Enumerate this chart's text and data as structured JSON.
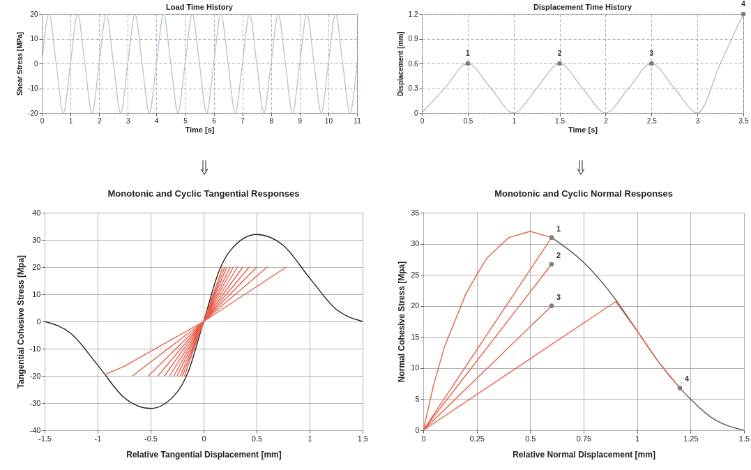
{
  "chart_data": [
    {
      "type": "line",
      "title": "Load Time History",
      "xlabel": "Time [s]",
      "ylabel": "Shear Stress [MPa]",
      "xlim": [
        0,
        11
      ],
      "ylim": [
        -20,
        20
      ],
      "xticks": [
        0,
        1,
        2,
        3,
        4,
        5,
        6,
        7,
        8,
        9,
        10,
        11
      ],
      "yticks": [
        -20,
        -10,
        0,
        10,
        20
      ],
      "grid": true,
      "series": [
        {
          "type": "line",
          "color": "#b4c3d6",
          "x": [
            0,
            0.25,
            0.5,
            0.75,
            1,
            1.25,
            1.5,
            1.75,
            2,
            2.25,
            2.5,
            2.75,
            3,
            3.25,
            3.5,
            3.75,
            4,
            4.25,
            4.5,
            4.75,
            5,
            5.25,
            5.5,
            5.75,
            6,
            6.25,
            6.5,
            6.75,
            7,
            7.25,
            7.5,
            7.75,
            8,
            8.25,
            8.5,
            8.75,
            9,
            9.25,
            9.5,
            9.75,
            10,
            10.25,
            10.5,
            10.75,
            11
          ],
          "values": [
            0,
            20,
            0,
            -20,
            0,
            20,
            0,
            -20,
            0,
            20,
            0,
            -20,
            0,
            20,
            0,
            -20,
            0,
            20,
            0,
            -20,
            0,
            20,
            0,
            -20,
            0,
            20,
            0,
            -20,
            0,
            20,
            0,
            -20,
            0,
            20,
            0,
            -20,
            0,
            20,
            0,
            -20,
            0,
            20,
            0,
            -20,
            0
          ]
        }
      ]
    },
    {
      "type": "line",
      "title": "Displacement Time History",
      "xlabel": "Time [s]",
      "ylabel": "Displacement [mm]",
      "xlim": [
        0,
        3.5
      ],
      "ylim": [
        0,
        1.2
      ],
      "xticks": [
        0,
        0.5,
        1,
        1.5,
        2,
        2.5,
        3,
        3.5
      ],
      "yticks": [
        0,
        0.3,
        0.6,
        0.9,
        1.2
      ],
      "grid": true,
      "series": [
        {
          "type": "line",
          "color": "#b8b8b8",
          "x": [
            0,
            0.25,
            0.5,
            0.75,
            1,
            1.25,
            1.5,
            1.75,
            2,
            2.25,
            2.5,
            2.75,
            3,
            3.25,
            3.5
          ],
          "values": [
            0,
            0.3,
            0.6,
            0.3,
            0,
            0.3,
            0.6,
            0.3,
            0,
            0.3,
            0.6,
            0.3,
            0,
            0.6,
            1.2
          ]
        },
        {
          "type": "scatter",
          "marker": "circle",
          "color": "#7f7f7f",
          "x": [
            0.5,
            1.5,
            2.5,
            3.5
          ],
          "values": [
            0.6,
            0.6,
            0.6,
            1.2
          ]
        }
      ],
      "annotations": [
        {
          "text": "1",
          "x": 0.5,
          "y": 0.6
        },
        {
          "text": "2",
          "x": 1.5,
          "y": 0.6
        },
        {
          "text": "3",
          "x": 2.5,
          "y": 0.6
        },
        {
          "text": "4",
          "x": 3.5,
          "y": 1.2
        }
      ]
    },
    {
      "type": "line",
      "title": "Monotonic and Cyclic Tangential Responses",
      "xlabel": "Relative Tangential Displacement [mm]",
      "ylabel": "Tangential Cohesive Stress [Mpa]",
      "xlim": [
        -1.5,
        1.5
      ],
      "ylim": [
        -40,
        40
      ],
      "xticks": [
        -1.5,
        -1,
        -0.5,
        0,
        0.5,
        1,
        1.5
      ],
      "yticks": [
        -40,
        -30,
        -20,
        -10,
        0,
        10,
        20,
        30,
        40
      ],
      "grid": true,
      "series": [
        {
          "type": "line",
          "color": "#222222",
          "x": [
            -1.5,
            -1.25,
            -1,
            -0.75,
            -0.5,
            -0.25,
            -0.15,
            0,
            0.15,
            0.25,
            0.5,
            0.75,
            1,
            1.25,
            1.5
          ],
          "values": [
            0,
            -4.5,
            -16,
            -28,
            -32,
            -26,
            -19,
            0,
            19,
            26,
            32,
            28,
            16,
            4.5,
            0
          ]
        },
        {
          "type": "line",
          "color": "#e8604c",
          "x": [
            0,
            0.18,
            0,
            -0.18,
            0,
            0.2,
            0,
            -0.2,
            0,
            0.22,
            0,
            -0.22,
            0,
            0.25,
            0,
            -0.25,
            0,
            0.28,
            0,
            -0.28,
            0,
            0.32,
            0,
            -0.32,
            0,
            0.37,
            0,
            -0.37,
            0,
            0.43,
            0,
            -0.43,
            0,
            0.5,
            0,
            -0.52,
            0,
            0.6,
            0,
            -0.67,
            0,
            0.78,
            0,
            -0.75,
            -0.93
          ],
          "values": [
            0,
            20,
            0,
            -20,
            0,
            20,
            0,
            -20,
            0,
            20,
            0,
            -20,
            0,
            20,
            0,
            -20,
            0,
            20,
            0,
            -20,
            0,
            20,
            0,
            -20,
            0,
            20,
            0,
            -20,
            0,
            20,
            0,
            -20,
            0,
            20,
            0,
            -20,
            0,
            20,
            0,
            -20,
            0,
            20,
            0,
            -16.5,
            -19.5
          ]
        }
      ]
    },
    {
      "type": "line",
      "title": "Monotonic and Cyclic Normal Responses",
      "xlabel": "Relative Normal Displacement [mm]",
      "ylabel": "Normal Cohesive Stress [Mpa]",
      "xlim": [
        0,
        1.5
      ],
      "ylim": [
        0,
        35
      ],
      "xticks": [
        0,
        0.25,
        0.5,
        0.75,
        1,
        1.25,
        1.5
      ],
      "yticks": [
        0,
        5,
        10,
        15,
        20,
        25,
        30,
        35
      ],
      "grid": true,
      "series": [
        {
          "type": "line",
          "color": "#555555",
          "x": [
            0.6,
            0.75,
            0.9,
            1,
            1.1,
            1.2,
            1.25,
            1.35,
            1.5
          ],
          "values": [
            31,
            27,
            21,
            16,
            11,
            6.8,
            5,
            2,
            0
          ]
        },
        {
          "type": "line",
          "color": "#e8604c",
          "x": [
            0,
            0.05,
            0.1,
            0.2,
            0.25,
            0.3,
            0.4,
            0.5,
            0.6,
            0,
            0.6,
            0,
            0.6,
            0,
            0.9,
            1,
            1.1,
            1.2
          ],
          "values": [
            0,
            7.5,
            13.5,
            22,
            25,
            27.8,
            31,
            32,
            31,
            0,
            26.7,
            0,
            20,
            0,
            20.7,
            16,
            11,
            6.8
          ]
        },
        {
          "type": "scatter",
          "marker": "circle",
          "color": "#7f7f7f",
          "x": [
            0.6,
            0.6,
            0.6,
            1.2
          ],
          "values": [
            31,
            26.7,
            20,
            6.8
          ]
        }
      ],
      "annotations": [
        {
          "text": "1",
          "x": 0.6,
          "y": 31
        },
        {
          "text": "2",
          "x": 0.6,
          "y": 26.7
        },
        {
          "text": "3",
          "x": 0.6,
          "y": 20
        },
        {
          "text": "4",
          "x": 1.2,
          "y": 6.8
        }
      ]
    }
  ]
}
